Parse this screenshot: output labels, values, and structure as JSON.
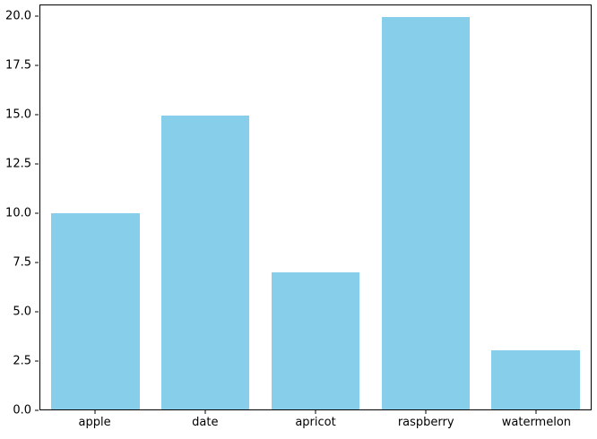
{
  "chart_data": {
    "type": "bar",
    "title": "",
    "xlabel": "",
    "ylabel": "",
    "categories": [
      "apple",
      "date",
      "apricot",
      "raspberry",
      "watermelon"
    ],
    "values": [
      10,
      15,
      7,
      20,
      3
    ],
    "ylim": [
      0,
      20.6
    ],
    "yticks": [
      0.0,
      2.5,
      5.0,
      7.5,
      10.0,
      12.5,
      15.0,
      17.5,
      20.0
    ],
    "ytick_labels": [
      "0.0",
      "2.5",
      "5.0",
      "7.5",
      "10.0",
      "12.5",
      "15.0",
      "17.5",
      "20.0"
    ],
    "grid": false,
    "legend": false,
    "bar_color": "#87CEEB",
    "axis_color": "#000000",
    "background_color": "#ffffff"
  }
}
